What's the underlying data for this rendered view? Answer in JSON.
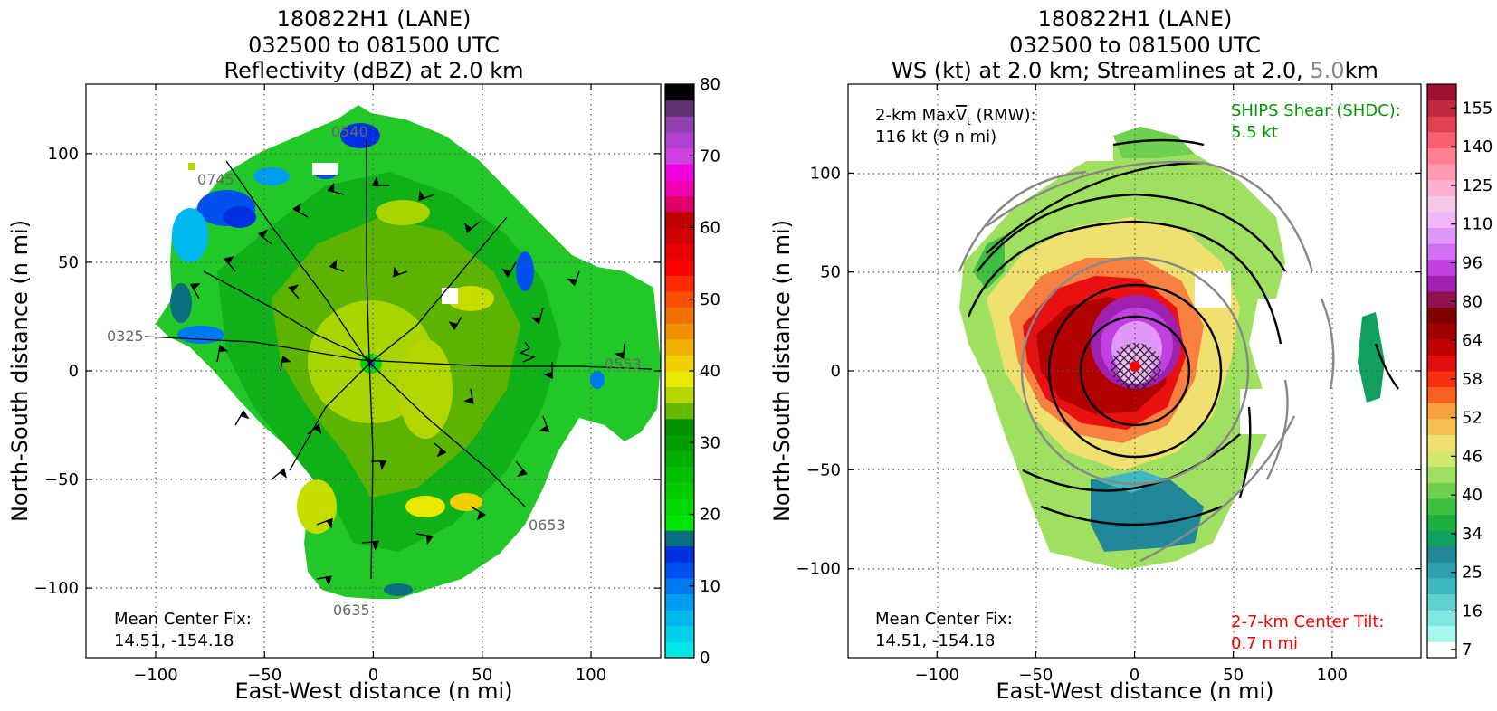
{
  "chart_data": [
    {
      "type": "heatmap",
      "title": [
        "180822H1 (LANE)",
        "032500 to 081500 UTC",
        "Reflectivity (dBZ) at 2.0 km"
      ],
      "xlabel": "East-West distance (n mi)",
      "ylabel": "North-South distance (n mi)",
      "xlim": [
        -132,
        132
      ],
      "ylim": [
        -132,
        132
      ],
      "xticks": [
        -100,
        -50,
        0,
        50,
        100
      ],
      "yticks": [
        -100,
        -50,
        0,
        50,
        100
      ],
      "xtick_labels": [
        "−100",
        "−50",
        "0",
        "50",
        "100"
      ],
      "ytick_labels": [
        "−100",
        "−50",
        "0",
        "50",
        "100"
      ],
      "grid": true,
      "colorbar": {
        "min": 0,
        "max": 80,
        "step": 2.5,
        "ticks": [
          0,
          10,
          20,
          30,
          40,
          50,
          60,
          70,
          80
        ],
        "tick_labels": [
          "0",
          "10",
          "20",
          "30",
          "40",
          "50",
          "60",
          "70",
          "80"
        ],
        "colors": [
          "#00e5e5",
          "#00d0ea",
          "#00b8ee",
          "#009ef2",
          "#0078f2",
          "#0050f0",
          "#0030e0",
          "#0a6e80",
          "#00e400",
          "#00d800",
          "#00cc00",
          "#00bf00",
          "#00b000",
          "#009e00",
          "#009000",
          "#66b800",
          "#b2d800",
          "#e8e800",
          "#f0d000",
          "#f0b000",
          "#f09000",
          "#f07000",
          "#f85000",
          "#ff2a00",
          "#ff0000",
          "#e80000",
          "#d00000",
          "#c00000",
          "#e0006a",
          "#f000b0",
          "#f000e0",
          "#d040e0",
          "#b040d0",
          "#9040b0",
          "#603070",
          "#000000"
        ]
      },
      "flight_track_labels": [
        {
          "text": "0325",
          "x": -118,
          "y": 16
        },
        {
          "text": "0745",
          "x": -80,
          "y": 87
        },
        {
          "text": "0540",
          "x": -20,
          "y": 109
        },
        {
          "text": "0553",
          "x": 108,
          "y": 1
        },
        {
          "text": "0653",
          "x": 72,
          "y": -71
        },
        {
          "text": "0635",
          "x": -17,
          "y": -110
        }
      ],
      "center_fix": {
        "label": "Mean Center Fix:",
        "value": "14.51, -154.18"
      }
    },
    {
      "type": "heatmap",
      "title": [
        "180822H1 (LANE)",
        "032500 to 081500 UTC",
        "WS (kt) at 2.0 km; Streamlines at 2.0, ",
        "5.0",
        "km"
      ],
      "xlabel": "East-West distance (n mi)",
      "ylabel": "North-South distance (n mi)",
      "xlim": [
        -145,
        145
      ],
      "ylim": [
        -145,
        145
      ],
      "xticks": [
        -100,
        -50,
        0,
        50,
        100
      ],
      "yticks": [
        -100,
        -50,
        0,
        50,
        100
      ],
      "xtick_labels": [
        "−100",
        "−50",
        "0",
        "50",
        "100"
      ],
      "ytick_labels": [
        "−100",
        "−50",
        "0",
        "50",
        "100"
      ],
      "grid": true,
      "colorbar": {
        "min": 7,
        "max": 160,
        "ticks": [
          7,
          16,
          25,
          34,
          40,
          46,
          52,
          58,
          64,
          80,
          96,
          110,
          125,
          140,
          155
        ],
        "tick_labels": [
          "7",
          "16",
          "25",
          "34",
          "40",
          "46",
          "52",
          "58",
          "64",
          "80",
          "96",
          "110",
          "125",
          "140",
          "155"
        ],
        "colors": [
          "#ffffff",
          "#a8f8f0",
          "#80e8e0",
          "#60d0d0",
          "#40b8c0",
          "#30a0b0",
          "#208898",
          "#10a060",
          "#20b040",
          "#40c040",
          "#70d050",
          "#a0e060",
          "#d0e870",
          "#f0e070",
          "#f8c050",
          "#f8a040",
          "#f86020",
          "#f83010",
          "#e01010",
          "#c00000",
          "#a00000",
          "#800000",
          "#901050",
          "#a020b0",
          "#c040e0",
          "#d070f0",
          "#e098f8",
          "#f0b8f8",
          "#f8c8e8",
          "#ffb0d0",
          "#ff98b0",
          "#ff8090",
          "#f86070",
          "#e04050",
          "#c02840",
          "#a01030"
        ]
      },
      "max_vt": {
        "line1_pre": "2-km Max",
        "line1_v": "V",
        "line1_t": "t",
        "line1_post": " (RMW):",
        "line2": "116 kt (9 n mi)"
      },
      "ships_shear": {
        "line1": "SHIPS Shear (SHDC):",
        "line2": "5.5 kt"
      },
      "center_tilt": {
        "line1": "2-7-km Center Tilt:",
        "line2": "0.7 n mi"
      },
      "center_fix": {
        "label": "Mean Center Fix:",
        "value": "14.51, -154.18"
      },
      "max_wind_speed": 116,
      "rmw_nmi": 9
    }
  ]
}
